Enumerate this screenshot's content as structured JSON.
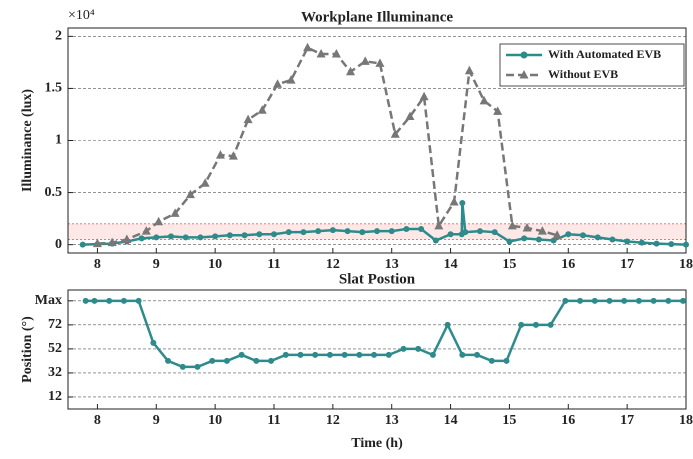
{
  "chart_data": [
    {
      "type": "line",
      "title": "Workplane Illuminance",
      "y_label": "Illuminance (lux)",
      "y_multiplier": "×10⁴",
      "xlim": [
        7.5,
        18
      ],
      "xticks": [
        8,
        9,
        10,
        11,
        12,
        13,
        14,
        15,
        16,
        17,
        18
      ],
      "ylim": [
        -0.08,
        2.08
      ],
      "yticks": [
        0,
        0.5,
        1,
        1.5,
        2
      ],
      "grid": true,
      "legend": "top-right",
      "reference_band": [
        0.05,
        0.2
      ],
      "reference_color": "#e06666",
      "series": [
        {
          "name": "With Automated EVB",
          "color": "#2e8b8b",
          "marker": "circle",
          "dashed": false,
          "x": [
            7.75,
            8,
            8.25,
            8.5,
            8.75,
            9,
            9.25,
            9.5,
            9.75,
            10,
            10.25,
            10.5,
            10.75,
            11,
            11.25,
            11.5,
            11.75,
            12,
            12.25,
            12.5,
            12.75,
            13,
            13.25,
            13.5,
            13.75,
            14,
            14.19,
            14.2,
            14.25,
            14.5,
            14.75,
            15,
            15.25,
            15.5,
            15.75,
            16,
            16.25,
            16.5,
            16.75,
            17,
            17.25,
            17.5,
            17.75,
            18
          ],
          "values": [
            0,
            0.005,
            0.01,
            0.03,
            0.06,
            0.07,
            0.08,
            0.07,
            0.07,
            0.08,
            0.09,
            0.09,
            0.1,
            0.1,
            0.12,
            0.12,
            0.13,
            0.14,
            0.13,
            0.12,
            0.13,
            0.13,
            0.15,
            0.15,
            0.04,
            0.1,
            0.1,
            0.4,
            0.12,
            0.13,
            0.12,
            0.03,
            0.06,
            0.05,
            0.04,
            0.1,
            0.09,
            0.07,
            0.05,
            0.03,
            0.02,
            0.01,
            0.005,
            0
          ]
        },
        {
          "name": "Without EVB",
          "color": "#777777",
          "marker": "triangle",
          "dashed": true,
          "x": [
            8,
            8.25,
            8.5,
            8.83,
            9.04,
            9.32,
            9.58,
            9.83,
            10.09,
            10.31,
            10.56,
            10.8,
            11.06,
            11.29,
            11.57,
            11.8,
            12.06,
            12.3,
            12.55,
            12.8,
            13.06,
            13.31,
            13.55,
            13.8,
            14.06,
            14.32,
            14.57,
            14.8,
            15.05,
            15.3,
            15.56,
            15.81
          ],
          "values": [
            0.01,
            0.02,
            0.05,
            0.13,
            0.22,
            0.3,
            0.48,
            0.59,
            0.86,
            0.85,
            1.2,
            1.29,
            1.54,
            1.58,
            1.89,
            1.83,
            1.83,
            1.66,
            1.76,
            1.74,
            1.06,
            1.23,
            1.42,
            0.18,
            0.41,
            1.67,
            1.38,
            1.28,
            0.18,
            0.16,
            0.13,
            0.09
          ]
        }
      ]
    },
    {
      "type": "line",
      "title": "Slat Postion",
      "y_label": "Position (°)",
      "x_label": "Time (h)",
      "xlim": [
        7.5,
        18
      ],
      "xticks": [
        8,
        9,
        10,
        11,
        12,
        13,
        14,
        15,
        16,
        17,
        18
      ],
      "ylim": [
        2,
        101
      ],
      "yticks": [
        12,
        32,
        52,
        72,
        {
          "value": 92,
          "label": "Max"
        }
      ],
      "grid": true,
      "series": [
        {
          "color": "#2e8b8b",
          "marker": "circle",
          "dashed": false,
          "x": [
            7.8,
            7.95,
            8.2,
            8.45,
            8.7,
            8.95,
            9.2,
            9.45,
            9.7,
            9.95,
            10.2,
            10.45,
            10.7,
            10.95,
            11.2,
            11.45,
            11.7,
            11.95,
            12.2,
            12.45,
            12.7,
            12.95,
            13.2,
            13.45,
            13.7,
            13.95,
            14.2,
            14.45,
            14.7,
            14.95,
            15.2,
            15.45,
            15.7,
            15.95,
            16.2,
            16.45,
            16.7,
            16.95,
            17.2,
            17.45,
            17.7,
            17.95
          ],
          "values": [
            92,
            92,
            92,
            92,
            92,
            57,
            42,
            37,
            37,
            42,
            42,
            47,
            42,
            42,
            47,
            47,
            47,
            47,
            47,
            47,
            47,
            47,
            52,
            52,
            47,
            72,
            47,
            47,
            42,
            42,
            72,
            72,
            72,
            92,
            92,
            92,
            92,
            92,
            92,
            92,
            92,
            92
          ]
        }
      ]
    }
  ]
}
